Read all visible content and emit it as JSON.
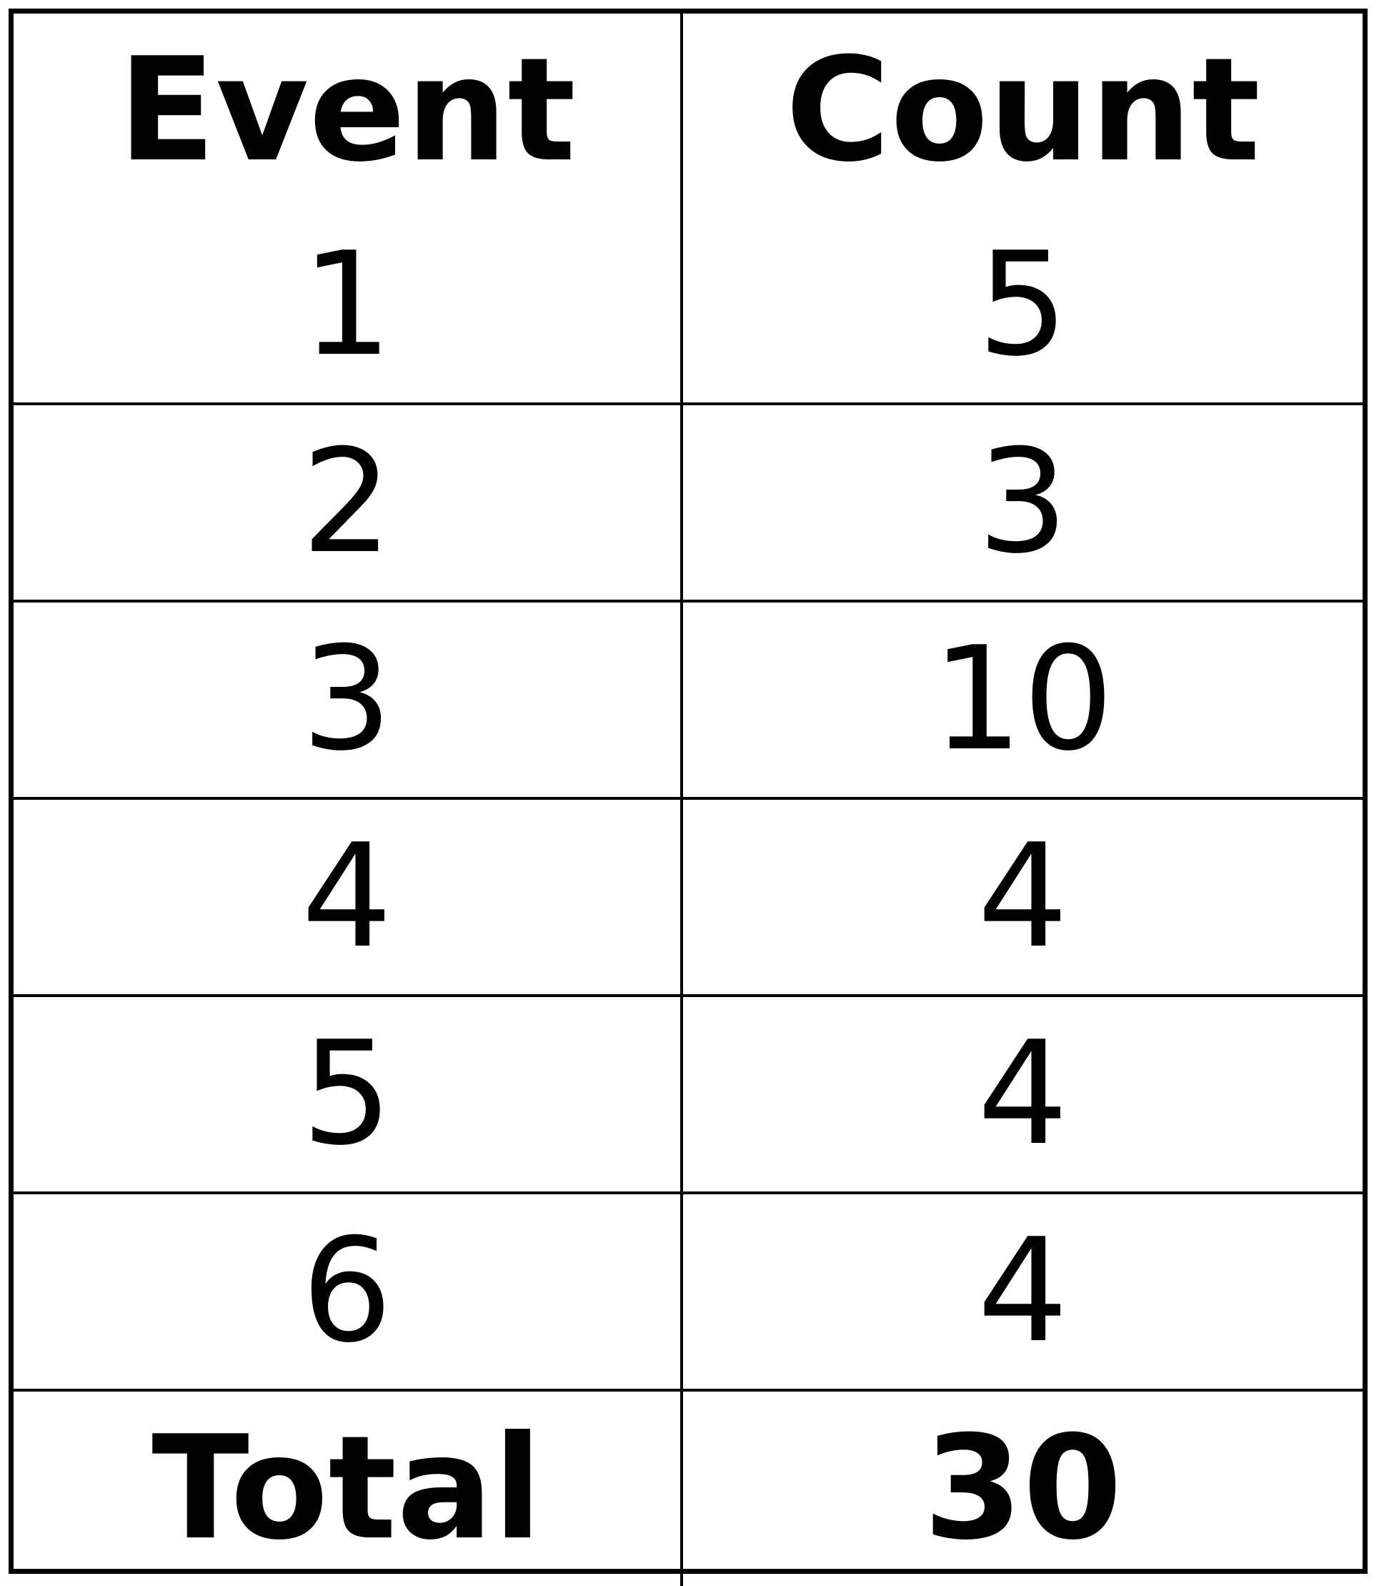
{
  "table": {
    "headers": [
      "Event",
      "Count"
    ],
    "rows": [
      [
        "1",
        "5"
      ],
      [
        "2",
        "3"
      ],
      [
        "3",
        "10"
      ],
      [
        "4",
        "4"
      ],
      [
        "5",
        "4"
      ],
      [
        "6",
        "4"
      ]
    ],
    "total": {
      "label": "Total",
      "value": "30"
    }
  }
}
